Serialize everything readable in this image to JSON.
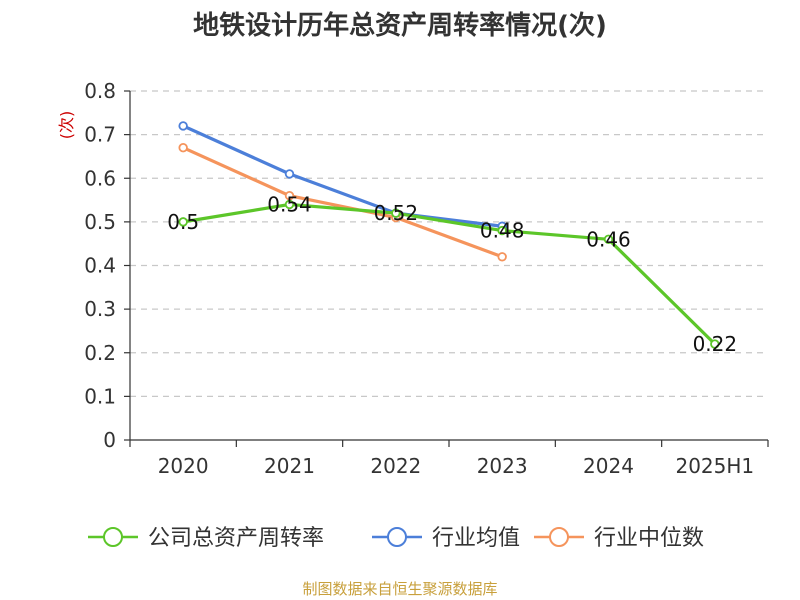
{
  "chart_data": {
    "type": "line",
    "title": "地铁设计历年总资产周转率情况(次)",
    "ylabel": "(次)",
    "categories": [
      "2020",
      "2021",
      "2022",
      "2023",
      "2024",
      "2025H1"
    ],
    "ylim": [
      0,
      0.8
    ],
    "yticks": [
      "0",
      "0.1",
      "0.2",
      "0.3",
      "0.4",
      "0.5",
      "0.6",
      "0.7",
      "0.8"
    ],
    "grid": true,
    "legend_position": "bottom",
    "series": [
      {
        "name": "公司总资产周转率",
        "color": "#5cc629",
        "values": [
          0.5,
          0.54,
          0.52,
          0.48,
          0.46,
          0.22
        ],
        "labels": [
          "0.5",
          "0.54",
          "0.52",
          "0.48",
          "0.46",
          "0.22"
        ]
      },
      {
        "name": "行业均值",
        "color": "#4c7fd9",
        "values": [
          0.72,
          0.61,
          0.52,
          0.49,
          null,
          null
        ]
      },
      {
        "name": "行业中位数",
        "color": "#f5945c",
        "values": [
          0.67,
          0.56,
          0.51,
          0.42,
          null,
          null
        ]
      }
    ]
  },
  "source": "制图数据来自恒生聚源数据库"
}
